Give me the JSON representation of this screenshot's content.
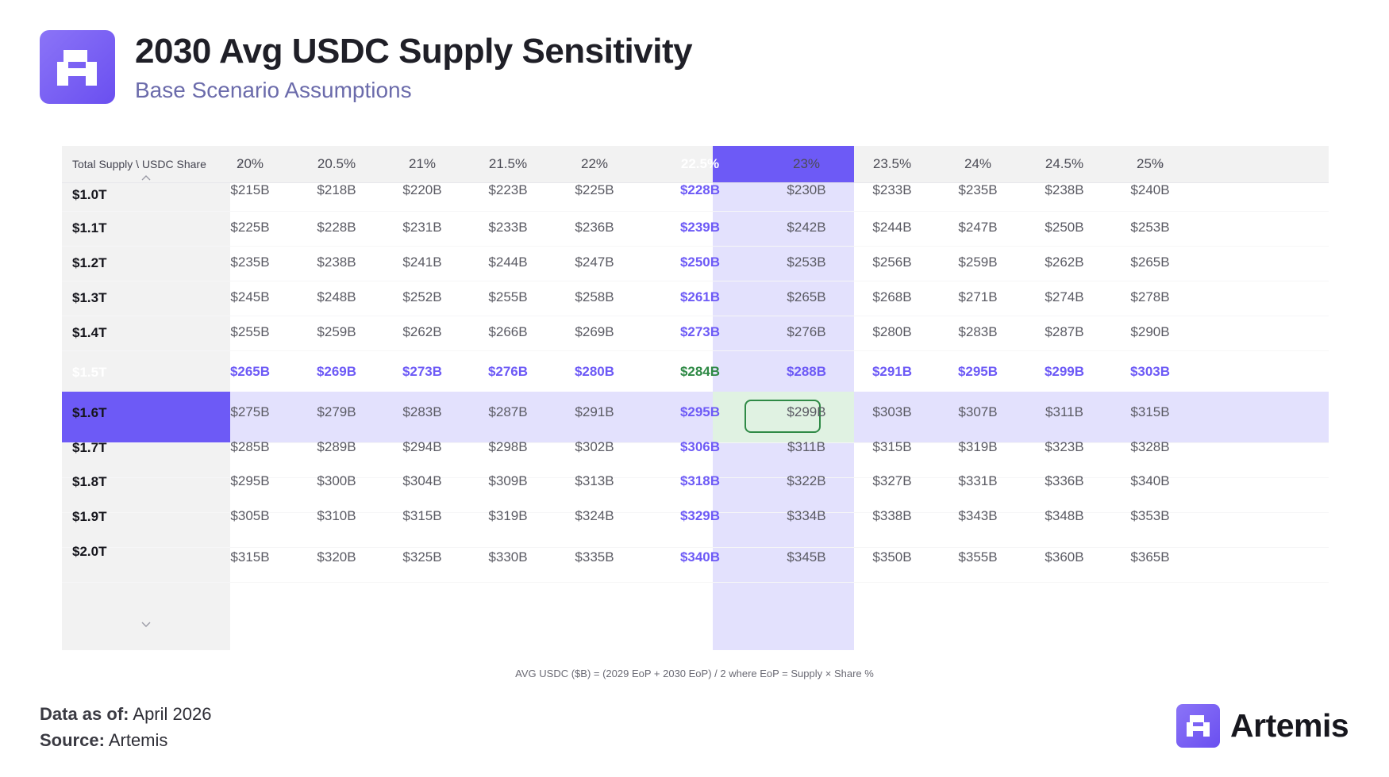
{
  "header": {
    "title": "2030 Avg USDC Supply Sensitivity",
    "subtitle": "Base Scenario Assumptions"
  },
  "chart_data": {
    "type": "table",
    "corner_label": "Total Supply \\ USDC Share",
    "columns": [
      "20%",
      "20.5%",
      "21%",
      "21.5%",
      "22%",
      "22.5%",
      "23%",
      "23.5%",
      "24%",
      "24.5%",
      "25%"
    ],
    "rows": [
      {
        "label": "$1.0T",
        "values": [
          "$215B",
          "$218B",
          "$220B",
          "$223B",
          "$225B",
          "$228B",
          "$230B",
          "$233B",
          "$235B",
          "$238B",
          "$240B"
        ]
      },
      {
        "label": "$1.1T",
        "values": [
          "$225B",
          "$228B",
          "$231B",
          "$233B",
          "$236B",
          "$239B",
          "$242B",
          "$244B",
          "$247B",
          "$250B",
          "$253B"
        ]
      },
      {
        "label": "$1.2T",
        "values": [
          "$235B",
          "$238B",
          "$241B",
          "$244B",
          "$247B",
          "$250B",
          "$253B",
          "$256B",
          "$259B",
          "$262B",
          "$265B"
        ]
      },
      {
        "label": "$1.3T",
        "values": [
          "$245B",
          "$248B",
          "$252B",
          "$255B",
          "$258B",
          "$261B",
          "$265B",
          "$268B",
          "$271B",
          "$274B",
          "$278B"
        ]
      },
      {
        "label": "$1.4T",
        "values": [
          "$255B",
          "$259B",
          "$262B",
          "$266B",
          "$269B",
          "$273B",
          "$276B",
          "$280B",
          "$283B",
          "$287B",
          "$290B"
        ]
      },
      {
        "label": "$1.5T",
        "values": [
          "$265B",
          "$269B",
          "$273B",
          "$276B",
          "$280B",
          "$284B",
          "$288B",
          "$291B",
          "$295B",
          "$299B",
          "$303B"
        ]
      },
      {
        "label": "$1.6T",
        "values": [
          "$275B",
          "$279B",
          "$283B",
          "$287B",
          "$291B",
          "$295B",
          "$299B",
          "$303B",
          "$307B",
          "$311B",
          "$315B"
        ]
      },
      {
        "label": "$1.7T",
        "values": [
          "$285B",
          "$289B",
          "$294B",
          "$298B",
          "$302B",
          "$306B",
          "$311B",
          "$315B",
          "$319B",
          "$323B",
          "$328B"
        ]
      },
      {
        "label": "$1.8T",
        "values": [
          "$295B",
          "$300B",
          "$304B",
          "$309B",
          "$313B",
          "$318B",
          "$322B",
          "$327B",
          "$331B",
          "$336B",
          "$340B"
        ]
      },
      {
        "label": "$1.9T",
        "values": [
          "$305B",
          "$310B",
          "$315B",
          "$319B",
          "$324B",
          "$329B",
          "$334B",
          "$338B",
          "$343B",
          "$348B",
          "$353B"
        ]
      },
      {
        "label": "$2.0T",
        "values": [
          "$315B",
          "$320B",
          "$325B",
          "$330B",
          "$335B",
          "$340B",
          "$345B",
          "$350B",
          "$355B",
          "$360B",
          "$365B"
        ]
      }
    ],
    "selected_column": "22.5%",
    "selected_row": "$1.5T",
    "selected_value": "$284B",
    "footnote": "AVG USDC ($B) = (2029 EoP + 2030 EoP) / 2 where EoP = Supply × Share %"
  },
  "colors": {
    "accent": "#6d5af6",
    "highlight_bg": "#e3e1fd",
    "selected_green": "#2f8a46",
    "selected_green_bg": "#e0f2e2",
    "subtitle": "#6b6bab"
  },
  "icons": {
    "left_arrow": "chevron-left-icon",
    "right_arrow": "chevron-right-icon",
    "scroll_up": "chevron-up-icon",
    "scroll_down": "chevron-down-icon",
    "logo": "artemis-logo-icon"
  },
  "footer": {
    "data_as_of_label": "Data as of:",
    "data_as_of_value": "April 2026",
    "source_label": "Source:",
    "source_value": "Artemis",
    "brand": "Artemis"
  }
}
